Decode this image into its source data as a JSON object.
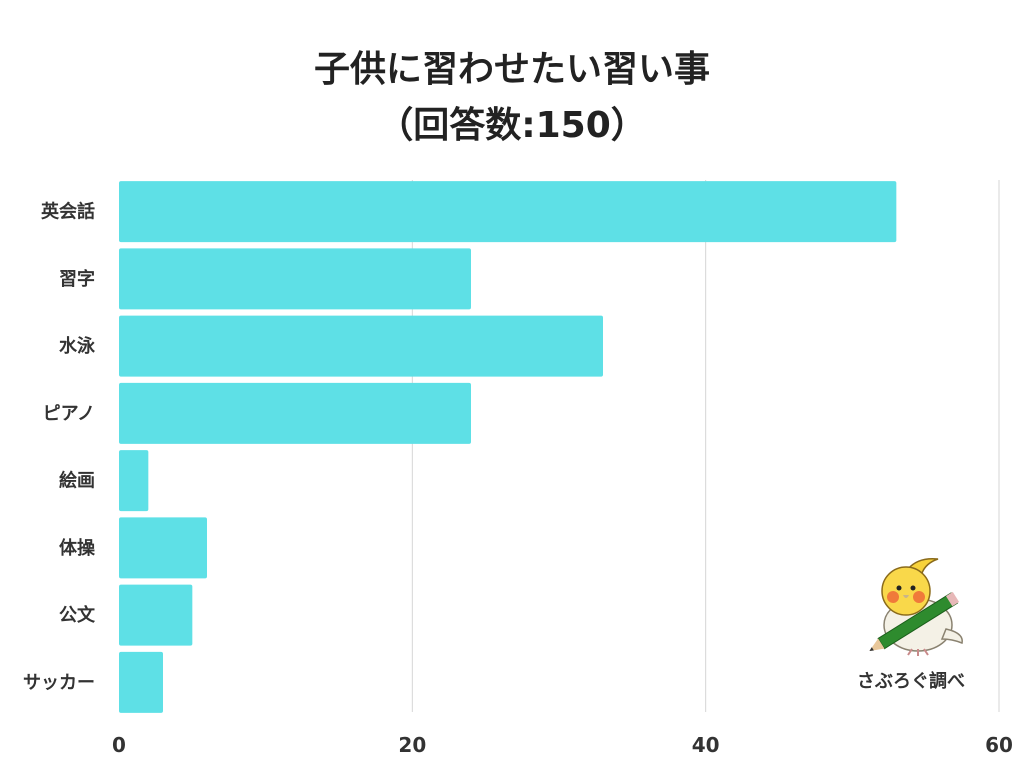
{
  "title": {
    "line1": "子供に習わせたい習い事",
    "line2": "（回答数:150）"
  },
  "chart_data": {
    "type": "bar",
    "orientation": "horizontal",
    "categories": [
      "英会話",
      "習字",
      "水泳",
      "ピアノ",
      "絵画",
      "体操",
      "公文",
      "サッカー"
    ],
    "values": [
      53,
      24,
      33,
      24,
      2,
      6,
      5,
      3
    ],
    "xlim": [
      0,
      60
    ],
    "xticks": [
      0,
      20,
      40,
      60
    ],
    "grid": true,
    "bar_color": "#5ee0e6"
  },
  "credit": "さぶろぐ調べ",
  "mascot_icon": "cockatiel-with-pencil-icon"
}
